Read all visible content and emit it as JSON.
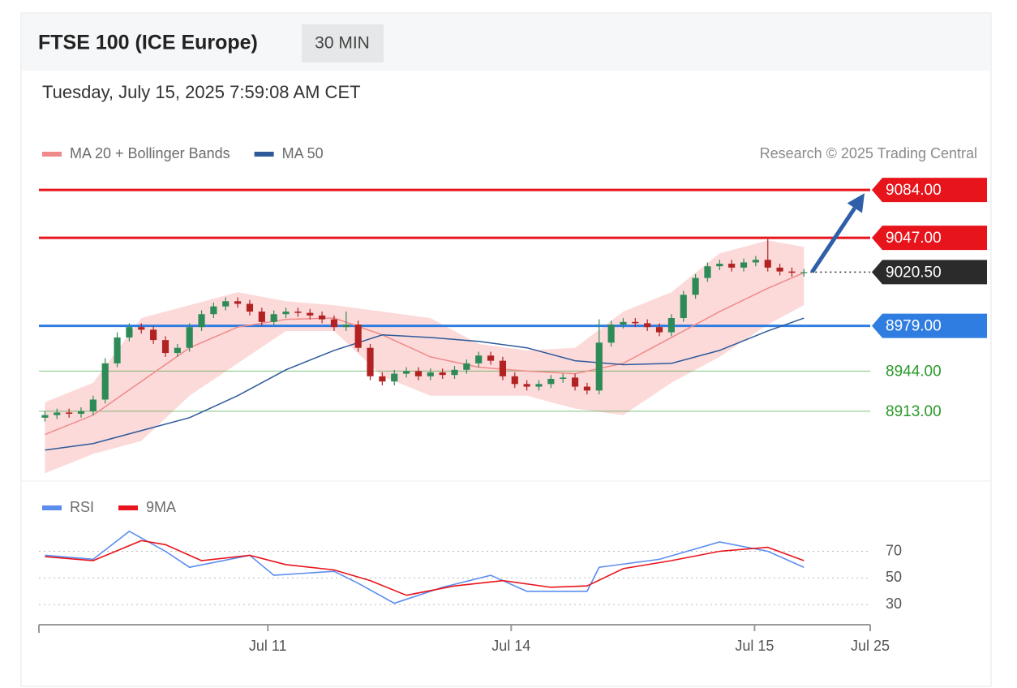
{
  "chart_data": [
    {
      "type": "candlestick",
      "title": "FTSE 100 (ICE Europe)",
      "timeframe": "30 MIN",
      "subtitle": "Tuesday, July 15, 2025 7:59:08 AM CET",
      "source": "Research © 2025 Trading Central",
      "up_color": "#2e8b57",
      "down_color": "#b22222",
      "xlim": [
        -0.5,
        68.5
      ],
      "ylim": [
        8864,
        9096
      ],
      "open": [
        8908,
        8910,
        8912,
        8911,
        8913,
        8922,
        8950,
        8970,
        8978,
        8976,
        8968,
        8958,
        8962,
        8978,
        8988,
        8994,
        8998,
        8996,
        8990,
        8982,
        8988,
        8990,
        8989,
        8987,
        8984,
        8978,
        8980,
        8962,
        8940,
        8936,
        8942,
        8944,
        8940,
        8943,
        8941,
        8945,
        8950,
        8956,
        8952,
        8940,
        8934,
        8932,
        8934,
        8938,
        8939,
        8932,
        8929,
        8966,
        8980,
        8982,
        8981,
        8978,
        8974,
        8985,
        9003,
        9016,
        9025,
        9027,
        9024,
        9028,
        9030,
        9024,
        9021,
        9020
      ],
      "high": [
        8913,
        8915,
        8915,
        8916,
        8925,
        8954,
        8974,
        8981,
        8981,
        8979,
        8971,
        8965,
        8981,
        8991,
        8997,
        9001,
        9001,
        8999,
        8993,
        8991,
        8993,
        8993,
        8992,
        8990,
        8987,
        8990,
        8983,
        8965,
        8943,
        8945,
        8947,
        8947,
        8946,
        8946,
        8948,
        8953,
        8959,
        8959,
        8955,
        8943,
        8937,
        8937,
        8941,
        8942,
        8942,
        8935,
        8984,
        8983,
        8985,
        8985,
        8984,
        8981,
        8988,
        9006,
        9019,
        9028,
        9030,
        9030,
        9031,
        9033,
        9046,
        9027,
        9024,
        9023
      ],
      "low": [
        8905,
        8907,
        8908,
        8908,
        8910,
        8919,
        8947,
        8967,
        8973,
        8965,
        8955,
        8955,
        8959,
        8975,
        8985,
        8991,
        8993,
        8987,
        8979,
        8979,
        8985,
        8986,
        8984,
        8981,
        8975,
        8975,
        8959,
        8937,
        8933,
        8933,
        8939,
        8937,
        8937,
        8938,
        8938,
        8942,
        8947,
        8949,
        8937,
        8931,
        8929,
        8929,
        8931,
        8935,
        8929,
        8926,
        8926,
        8963,
        8977,
        8978,
        8975,
        8971,
        8971,
        8982,
        9000,
        9013,
        9022,
        9021,
        9021,
        9025,
        9021,
        9018,
        9017,
        9017
      ],
      "close": [
        8910,
        8912,
        8911,
        8913,
        8922,
        8950,
        8970,
        8978,
        8976,
        8968,
        8958,
        8962,
        8978,
        8988,
        8994,
        8998,
        8996,
        8990,
        8982,
        8988,
        8990,
        8989,
        8987,
        8984,
        8978,
        8980,
        8962,
        8940,
        8936,
        8942,
        8944,
        8940,
        8943,
        8941,
        8945,
        8950,
        8956,
        8952,
        8940,
        8934,
        8932,
        8934,
        8938,
        8939,
        8932,
        8929,
        8966,
        8980,
        8982,
        8981,
        8978,
        8974,
        8985,
        9003,
        9016,
        9025,
        9027,
        9024,
        9028,
        9030,
        9024,
        9021,
        9020,
        9020.5
      ],
      "overlays": [
        {
          "name": "MA 20 + Bollinger Bands",
          "color": "#f08a8a",
          "band_color": "#fbd3d3",
          "x": [
            0,
            4,
            8,
            12,
            16,
            20,
            24,
            28,
            32,
            36,
            40,
            44,
            48,
            52,
            56,
            60,
            63
          ],
          "values": [
            8895,
            8910,
            8936,
            8962,
            8978,
            8984,
            8985,
            8972,
            8955,
            8947,
            8944,
            8942,
            8950,
            8970,
            8990,
            9008,
            9020
          ],
          "upper": [
            8920,
            8935,
            8985,
            8995,
            9005,
            8998,
            8995,
            8990,
            8985,
            8965,
            8960,
            8962,
            8990,
            9005,
            9035,
            9045,
            9040
          ],
          "lower": [
            8865,
            8880,
            8890,
            8925,
            8950,
            8975,
            8975,
            8940,
            8925,
            8925,
            8925,
            8915,
            8910,
            8935,
            8955,
            8980,
            8995
          ]
        },
        {
          "name": "MA 50",
          "color": "#2e5a9a",
          "x": [
            0,
            4,
            8,
            12,
            16,
            20,
            24,
            28,
            32,
            36,
            40,
            44,
            48,
            52,
            56,
            60,
            63
          ],
          "values": [
            8883,
            8888,
            8898,
            8908,
            8925,
            8945,
            8960,
            8972,
            8970,
            8967,
            8962,
            8952,
            8949,
            8950,
            8960,
            8975,
            8985
          ]
        }
      ],
      "levels": [
        {
          "value": 9084,
          "label": "9084.00",
          "color": "#e8141c",
          "line": "solid",
          "label_style": "box"
        },
        {
          "value": 9047,
          "label": "9047.00",
          "color": "#e8141c",
          "line": "solid",
          "label_style": "box"
        },
        {
          "value": 9020.5,
          "label": "9020.50",
          "color": "#2b2b2b",
          "line": "dotted",
          "label_style": "box"
        },
        {
          "value": 8979,
          "label": "8979.00",
          "color": "#2f7de1",
          "line": "solid",
          "label_style": "box"
        },
        {
          "value": 8944,
          "label": "8944.00",
          "color": "#2a9a2a",
          "line": "solid",
          "label_style": "text"
        },
        {
          "value": 8913,
          "label": "8913.00",
          "color": "#2a9a2a",
          "line": "solid",
          "label_style": "text"
        }
      ]
    },
    {
      "type": "line",
      "xlim": [
        -0.5,
        68.5
      ],
      "ylim": [
        21,
        91
      ],
      "yticks": [
        30,
        50,
        70
      ],
      "xticks": [
        {
          "value": 18.5,
          "label": "Jul 11"
        },
        {
          "value": 38.7,
          "label": "Jul 14"
        },
        {
          "value": 58.9,
          "label": "Jul 15"
        },
        {
          "value": 68.5,
          "label": "Jul 25"
        }
      ],
      "series": [
        {
          "name": "RSI",
          "color": "#5b8def",
          "x": [
            0,
            4,
            7,
            10,
            12,
            17,
            19,
            24,
            26,
            29,
            33,
            37,
            40,
            45,
            46,
            51,
            56,
            60,
            63
          ],
          "values": [
            67,
            64,
            85,
            70,
            58,
            67,
            52,
            55,
            46,
            31,
            43,
            52,
            40,
            40,
            58,
            64,
            77,
            70,
            58
          ]
        },
        {
          "name": "9MA",
          "color": "#e8141c",
          "x": [
            0,
            4,
            8,
            10,
            13,
            17,
            20,
            24,
            27,
            30,
            34,
            38,
            42,
            45,
            48,
            52,
            56,
            60,
            63
          ],
          "values": [
            66,
            63,
            78,
            75,
            63,
            67,
            60,
            56,
            48,
            37,
            44,
            48,
            43,
            44,
            57,
            63,
            70,
            73,
            63
          ]
        }
      ]
    }
  ]
}
